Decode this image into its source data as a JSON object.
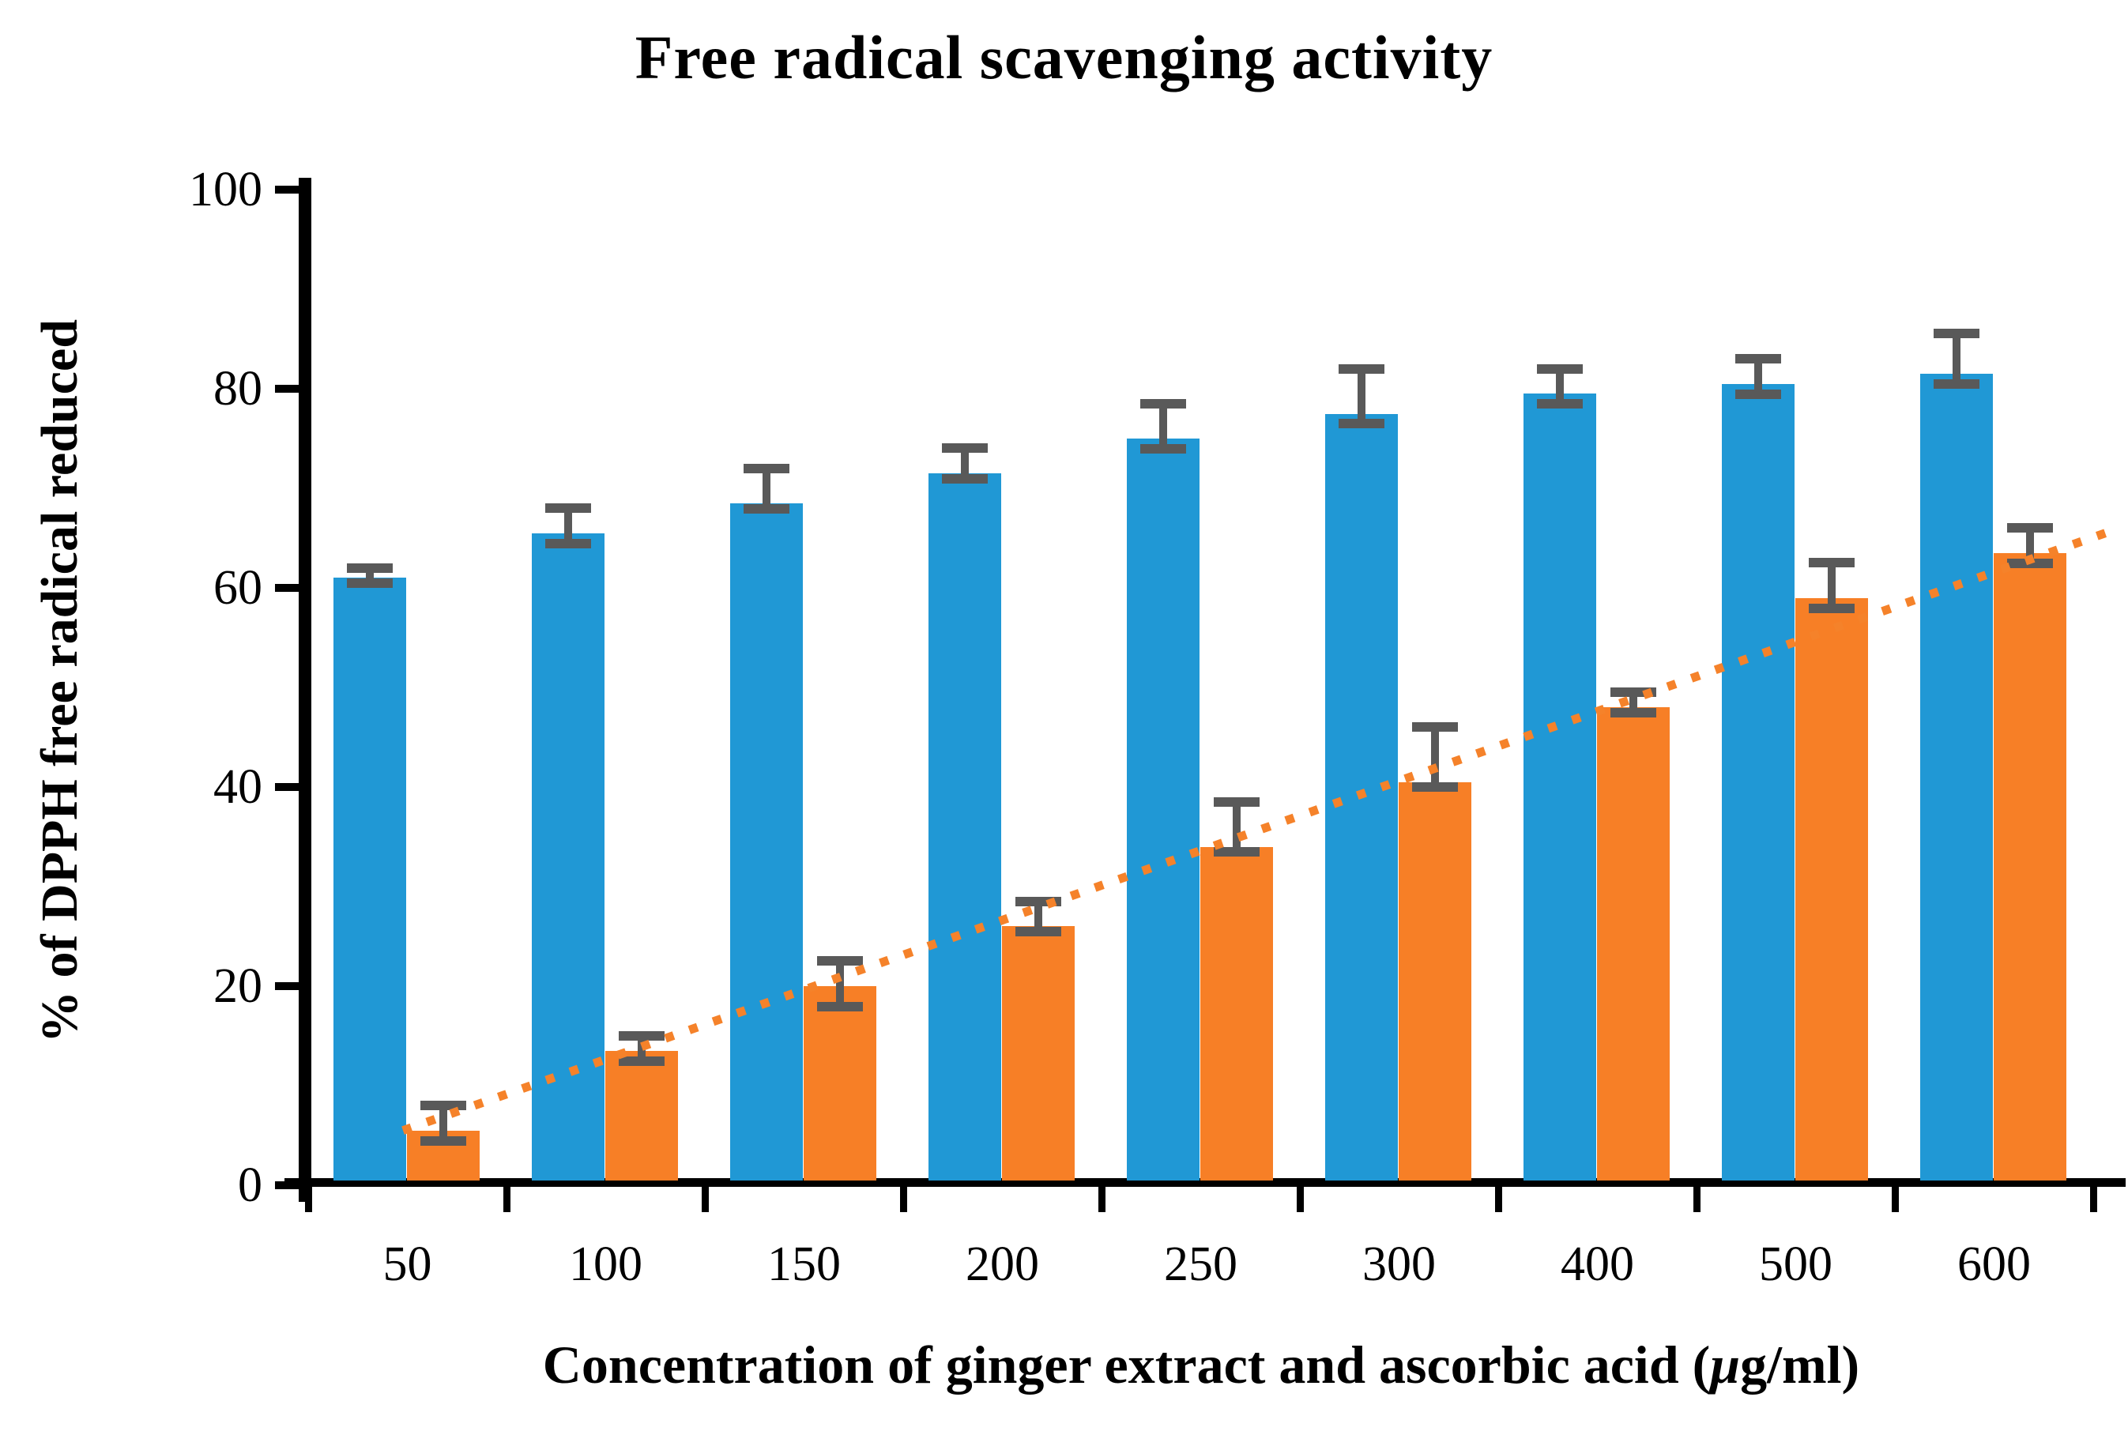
{
  "chart_data": {
    "type": "bar",
    "title": "Free radical scavenging activity",
    "ylabel": "% of DPPH free radical reduced",
    "xlabel": "Concentration of ginger extract and ascorbic acid (μg/ml)",
    "xlabel_parts": {
      "prefix": "Concentration of ginger extract and ascorbic acid (",
      "mu": "μ",
      "suffix": "g/ml)"
    },
    "categories": [
      "50",
      "100",
      "150",
      "200",
      "250",
      "300",
      "400",
      "500",
      "600"
    ],
    "ylim": [
      0,
      100
    ],
    "yticks": [
      100,
      80,
      60,
      40,
      20,
      0
    ],
    "grid": false,
    "legend_position": "none",
    "error_bar_color": "#595959",
    "axis_color": "#000000",
    "series": [
      {
        "name": "blue-series",
        "color": "#2098D5",
        "values": [
          61,
          65.5,
          68.5,
          71.5,
          75,
          77.5,
          79.5,
          80.5,
          81.5
        ],
        "err_up": [
          1.5,
          3,
          4,
          3,
          4,
          5,
          3,
          3,
          4.5
        ],
        "err_down": [
          1,
          1.5,
          1,
          1,
          1.5,
          1.5,
          1.5,
          1.5,
          1.5
        ]
      },
      {
        "name": "orange-series",
        "color": "#F77F26",
        "values": [
          5.5,
          13.5,
          20,
          26,
          34,
          40.5,
          48,
          59,
          63.5
        ],
        "err_up": [
          3,
          2,
          3,
          3,
          5,
          6,
          2,
          4,
          3
        ],
        "err_down": [
          1.5,
          1.5,
          2.5,
          1,
          1,
          1,
          1,
          1.5,
          1.5
        ]
      }
    ],
    "trendline": {
      "for_series": "orange-series",
      "style": "dotted",
      "color": "#F5822A",
      "start_value": 5.5,
      "end_value": 66
    }
  }
}
